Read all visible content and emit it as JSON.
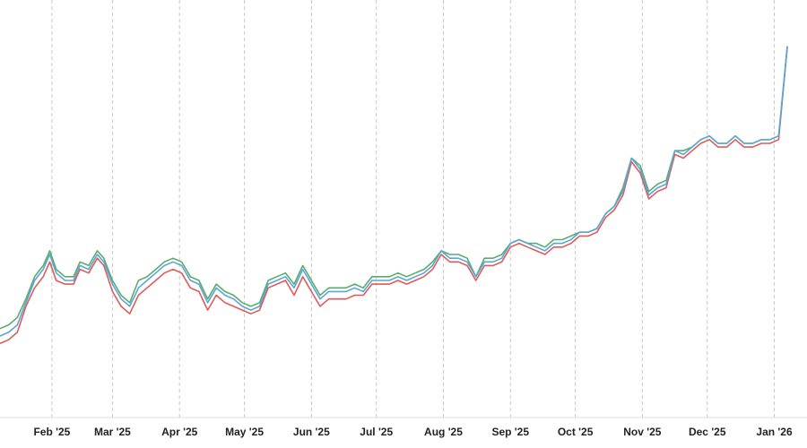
{
  "chart_data": {
    "type": "line",
    "title": "",
    "xlabel": "",
    "ylabel": "",
    "grid": {
      "x": true,
      "y": false
    },
    "legend": "none",
    "x_ticks": [
      {
        "label": "Feb '25",
        "date": "2025-02-01"
      },
      {
        "label": "Mar '25",
        "date": "2025-03-01"
      },
      {
        "label": "Apr '25",
        "date": "2025-04-01"
      },
      {
        "label": "May '25",
        "date": "2025-05-01"
      },
      {
        "label": "Jun '25",
        "date": "2025-06-01"
      },
      {
        "label": "Jul '25",
        "date": "2025-07-01"
      },
      {
        "label": "Aug '25",
        "date": "2025-08-01"
      },
      {
        "label": "Sep '25",
        "date": "2025-09-01"
      },
      {
        "label": "Oct '25",
        "date": "2025-10-01"
      },
      {
        "label": "Nov '25",
        "date": "2025-11-01"
      },
      {
        "label": "Dec '25",
        "date": "2025-12-01"
      },
      {
        "label": "Jan '26",
        "date": "2026-01-01"
      }
    ],
    "xlim": [
      "2025-01-08",
      "2026-01-07"
    ],
    "ylim": [
      0,
      100
    ],
    "series": [
      {
        "color": "#5aab6e",
        "points": [
          [
            "2025-01-08",
            24
          ],
          [
            "2025-01-12",
            25
          ],
          [
            "2025-01-16",
            27
          ],
          [
            "2025-01-20",
            32
          ],
          [
            "2025-01-24",
            38
          ],
          [
            "2025-01-28",
            41
          ],
          [
            "2025-01-31",
            45
          ],
          [
            "2025-02-03",
            40
          ],
          [
            "2025-02-07",
            38
          ],
          [
            "2025-02-11",
            38
          ],
          [
            "2025-02-14",
            42
          ],
          [
            "2025-02-18",
            41
          ],
          [
            "2025-02-22",
            45
          ],
          [
            "2025-02-25",
            43
          ],
          [
            "2025-03-01",
            37
          ],
          [
            "2025-03-05",
            33
          ],
          [
            "2025-03-09",
            31
          ],
          [
            "2025-03-13",
            37
          ],
          [
            "2025-03-17",
            38
          ],
          [
            "2025-03-21",
            40
          ],
          [
            "2025-03-25",
            42
          ],
          [
            "2025-03-29",
            43
          ],
          [
            "2025-04-02",
            42
          ],
          [
            "2025-04-06",
            38
          ],
          [
            "2025-04-10",
            37
          ],
          [
            "2025-04-14",
            32
          ],
          [
            "2025-04-18",
            36
          ],
          [
            "2025-04-22",
            34
          ],
          [
            "2025-04-26",
            33
          ],
          [
            "2025-04-30",
            31
          ],
          [
            "2025-05-04",
            30
          ],
          [
            "2025-05-08",
            31
          ],
          [
            "2025-05-12",
            37
          ],
          [
            "2025-05-16",
            38
          ],
          [
            "2025-05-20",
            39
          ],
          [
            "2025-05-24",
            36
          ],
          [
            "2025-05-28",
            41
          ],
          [
            "2025-06-01",
            37
          ],
          [
            "2025-06-05",
            33
          ],
          [
            "2025-06-09",
            35
          ],
          [
            "2025-06-13",
            35
          ],
          [
            "2025-06-17",
            35
          ],
          [
            "2025-06-21",
            36
          ],
          [
            "2025-06-25",
            35
          ],
          [
            "2025-06-29",
            38
          ],
          [
            "2025-07-03",
            38
          ],
          [
            "2025-07-07",
            38
          ],
          [
            "2025-07-11",
            39
          ],
          [
            "2025-07-15",
            38
          ],
          [
            "2025-07-19",
            39
          ],
          [
            "2025-07-23",
            40
          ],
          [
            "2025-07-27",
            42
          ],
          [
            "2025-07-31",
            45
          ],
          [
            "2025-08-04",
            44
          ],
          [
            "2025-08-08",
            44
          ],
          [
            "2025-08-12",
            43
          ],
          [
            "2025-08-16",
            38
          ],
          [
            "2025-08-20",
            43
          ],
          [
            "2025-08-24",
            43
          ],
          [
            "2025-08-28",
            44
          ],
          [
            "2025-09-01",
            47
          ],
          [
            "2025-09-05",
            48
          ],
          [
            "2025-09-09",
            47
          ],
          [
            "2025-09-13",
            47
          ],
          [
            "2025-09-17",
            46
          ],
          [
            "2025-09-21",
            48
          ],
          [
            "2025-09-25",
            48
          ],
          [
            "2025-09-29",
            49
          ],
          [
            "2025-10-03",
            50
          ],
          [
            "2025-10-07",
            50
          ],
          [
            "2025-10-11",
            51
          ],
          [
            "2025-10-15",
            55
          ],
          [
            "2025-10-19",
            57
          ],
          [
            "2025-10-23",
            62
          ],
          [
            "2025-10-27",
            70
          ],
          [
            "2025-10-31",
            68
          ],
          [
            "2025-11-04",
            61
          ],
          [
            "2025-11-08",
            63
          ],
          [
            "2025-11-12",
            64
          ],
          [
            "2025-11-16",
            72
          ],
          [
            "2025-11-20",
            72
          ],
          [
            "2025-11-24",
            73
          ],
          [
            "2025-11-28",
            75
          ],
          [
            "2025-12-02",
            76
          ],
          [
            "2025-12-06",
            74
          ],
          [
            "2025-12-10",
            74
          ],
          [
            "2025-12-14",
            76
          ],
          [
            "2025-12-18",
            74
          ],
          [
            "2025-12-22",
            74
          ],
          [
            "2025-12-26",
            75
          ],
          [
            "2025-12-30",
            75
          ],
          [
            "2026-01-03",
            76
          ],
          [
            "2026-01-07",
            100
          ]
        ]
      },
      {
        "color": "#e05a5a",
        "points": [
          [
            "2025-01-08",
            20
          ],
          [
            "2025-01-12",
            21
          ],
          [
            "2025-01-16",
            23
          ],
          [
            "2025-01-20",
            30
          ],
          [
            "2025-01-24",
            35
          ],
          [
            "2025-01-28",
            38
          ],
          [
            "2025-01-31",
            42
          ],
          [
            "2025-02-03",
            37
          ],
          [
            "2025-02-07",
            36
          ],
          [
            "2025-02-11",
            36
          ],
          [
            "2025-02-14",
            40
          ],
          [
            "2025-02-18",
            39
          ],
          [
            "2025-02-22",
            43
          ],
          [
            "2025-02-25",
            41
          ],
          [
            "2025-03-01",
            34
          ],
          [
            "2025-03-05",
            30
          ],
          [
            "2025-03-09",
            28
          ],
          [
            "2025-03-13",
            33
          ],
          [
            "2025-03-17",
            35
          ],
          [
            "2025-03-21",
            37
          ],
          [
            "2025-03-25",
            39
          ],
          [
            "2025-03-29",
            40
          ],
          [
            "2025-04-02",
            39
          ],
          [
            "2025-04-06",
            35
          ],
          [
            "2025-04-10",
            34
          ],
          [
            "2025-04-14",
            29
          ],
          [
            "2025-04-18",
            33
          ],
          [
            "2025-04-22",
            31
          ],
          [
            "2025-04-26",
            30
          ],
          [
            "2025-04-30",
            29
          ],
          [
            "2025-05-04",
            28
          ],
          [
            "2025-05-08",
            29
          ],
          [
            "2025-05-12",
            35
          ],
          [
            "2025-05-16",
            36
          ],
          [
            "2025-05-20",
            37
          ],
          [
            "2025-05-24",
            33
          ],
          [
            "2025-05-28",
            38
          ],
          [
            "2025-06-01",
            34
          ],
          [
            "2025-06-05",
            30
          ],
          [
            "2025-06-09",
            32
          ],
          [
            "2025-06-13",
            32
          ],
          [
            "2025-06-17",
            32
          ],
          [
            "2025-06-21",
            33
          ],
          [
            "2025-06-25",
            33
          ],
          [
            "2025-06-29",
            36
          ],
          [
            "2025-07-03",
            36
          ],
          [
            "2025-07-07",
            36
          ],
          [
            "2025-07-11",
            37
          ],
          [
            "2025-07-15",
            36
          ],
          [
            "2025-07-19",
            37
          ],
          [
            "2025-07-23",
            38
          ],
          [
            "2025-07-27",
            40
          ],
          [
            "2025-07-31",
            44
          ],
          [
            "2025-08-04",
            42
          ],
          [
            "2025-08-08",
            42
          ],
          [
            "2025-08-12",
            41
          ],
          [
            "2025-08-16",
            37
          ],
          [
            "2025-08-20",
            41
          ],
          [
            "2025-08-24",
            41
          ],
          [
            "2025-08-28",
            42
          ],
          [
            "2025-09-01",
            46
          ],
          [
            "2025-09-05",
            47
          ],
          [
            "2025-09-09",
            46
          ],
          [
            "2025-09-13",
            45
          ],
          [
            "2025-09-17",
            44
          ],
          [
            "2025-09-21",
            46
          ],
          [
            "2025-09-25",
            46
          ],
          [
            "2025-09-29",
            47
          ],
          [
            "2025-10-03",
            49
          ],
          [
            "2025-10-07",
            49
          ],
          [
            "2025-10-11",
            50
          ],
          [
            "2025-10-15",
            54
          ],
          [
            "2025-10-19",
            56
          ],
          [
            "2025-10-23",
            60
          ],
          [
            "2025-10-27",
            69
          ],
          [
            "2025-10-31",
            66
          ],
          [
            "2025-11-04",
            59
          ],
          [
            "2025-11-08",
            61
          ],
          [
            "2025-11-12",
            62
          ],
          [
            "2025-11-16",
            71
          ],
          [
            "2025-11-20",
            70
          ],
          [
            "2025-11-24",
            72
          ],
          [
            "2025-11-28",
            74
          ],
          [
            "2025-12-02",
            75
          ],
          [
            "2025-12-06",
            73
          ],
          [
            "2025-12-10",
            73
          ],
          [
            "2025-12-14",
            75
          ],
          [
            "2025-12-18",
            73
          ],
          [
            "2025-12-22",
            73
          ],
          [
            "2025-12-26",
            74
          ],
          [
            "2025-12-30",
            74
          ],
          [
            "2026-01-03",
            75
          ],
          [
            "2026-01-07",
            100
          ]
        ]
      },
      {
        "color": "#5aa6d6",
        "points": [
          [
            "2025-01-08",
            22
          ],
          [
            "2025-01-12",
            23
          ],
          [
            "2025-01-16",
            25
          ],
          [
            "2025-01-20",
            31
          ],
          [
            "2025-01-24",
            37
          ],
          [
            "2025-01-28",
            40
          ],
          [
            "2025-01-31",
            44
          ],
          [
            "2025-02-03",
            39
          ],
          [
            "2025-02-07",
            37
          ],
          [
            "2025-02-11",
            37
          ],
          [
            "2025-02-14",
            41
          ],
          [
            "2025-02-18",
            40
          ],
          [
            "2025-02-22",
            44
          ],
          [
            "2025-02-25",
            42
          ],
          [
            "2025-03-01",
            36
          ],
          [
            "2025-03-05",
            32
          ],
          [
            "2025-03-09",
            30
          ],
          [
            "2025-03-13",
            35
          ],
          [
            "2025-03-17",
            37
          ],
          [
            "2025-03-21",
            39
          ],
          [
            "2025-03-25",
            41
          ],
          [
            "2025-03-29",
            42
          ],
          [
            "2025-04-02",
            41
          ],
          [
            "2025-04-06",
            37
          ],
          [
            "2025-04-10",
            36
          ],
          [
            "2025-04-14",
            31
          ],
          [
            "2025-04-18",
            35
          ],
          [
            "2025-04-22",
            33
          ],
          [
            "2025-04-26",
            32
          ],
          [
            "2025-04-30",
            30
          ],
          [
            "2025-05-04",
            29
          ],
          [
            "2025-05-08",
            30
          ],
          [
            "2025-05-12",
            36
          ],
          [
            "2025-05-16",
            37
          ],
          [
            "2025-05-20",
            38
          ],
          [
            "2025-05-24",
            35
          ],
          [
            "2025-05-28",
            40
          ],
          [
            "2025-06-01",
            36
          ],
          [
            "2025-06-05",
            32
          ],
          [
            "2025-06-09",
            34
          ],
          [
            "2025-06-13",
            34
          ],
          [
            "2025-06-17",
            34
          ],
          [
            "2025-06-21",
            35
          ],
          [
            "2025-06-25",
            34
          ],
          [
            "2025-06-29",
            37
          ],
          [
            "2025-07-03",
            37
          ],
          [
            "2025-07-07",
            37
          ],
          [
            "2025-07-11",
            38
          ],
          [
            "2025-07-15",
            37
          ],
          [
            "2025-07-19",
            38
          ],
          [
            "2025-07-23",
            39
          ],
          [
            "2025-07-27",
            41
          ],
          [
            "2025-07-31",
            45
          ],
          [
            "2025-08-04",
            43
          ],
          [
            "2025-08-08",
            43
          ],
          [
            "2025-08-12",
            42
          ],
          [
            "2025-08-16",
            38
          ],
          [
            "2025-08-20",
            42
          ],
          [
            "2025-08-24",
            42
          ],
          [
            "2025-08-28",
            43
          ],
          [
            "2025-09-01",
            47
          ],
          [
            "2025-09-05",
            48
          ],
          [
            "2025-09-09",
            47
          ],
          [
            "2025-09-13",
            46
          ],
          [
            "2025-09-17",
            45
          ],
          [
            "2025-09-21",
            47
          ],
          [
            "2025-09-25",
            47
          ],
          [
            "2025-09-29",
            48
          ],
          [
            "2025-10-03",
            50
          ],
          [
            "2025-10-07",
            50
          ],
          [
            "2025-10-11",
            51
          ],
          [
            "2025-10-15",
            55
          ],
          [
            "2025-10-19",
            57
          ],
          [
            "2025-10-23",
            61
          ],
          [
            "2025-10-27",
            70
          ],
          [
            "2025-10-31",
            67
          ],
          [
            "2025-11-04",
            60
          ],
          [
            "2025-11-08",
            62
          ],
          [
            "2025-11-12",
            63
          ],
          [
            "2025-11-16",
            72
          ],
          [
            "2025-11-20",
            71
          ],
          [
            "2025-11-24",
            73
          ],
          [
            "2025-11-28",
            75
          ],
          [
            "2025-12-02",
            76
          ],
          [
            "2025-12-06",
            74
          ],
          [
            "2025-12-10",
            74
          ],
          [
            "2025-12-14",
            76
          ],
          [
            "2025-12-18",
            74
          ],
          [
            "2025-12-22",
            74
          ],
          [
            "2025-12-26",
            75
          ],
          [
            "2025-12-30",
            75
          ],
          [
            "2026-01-03",
            76
          ],
          [
            "2026-01-07",
            100
          ]
        ]
      }
    ]
  }
}
